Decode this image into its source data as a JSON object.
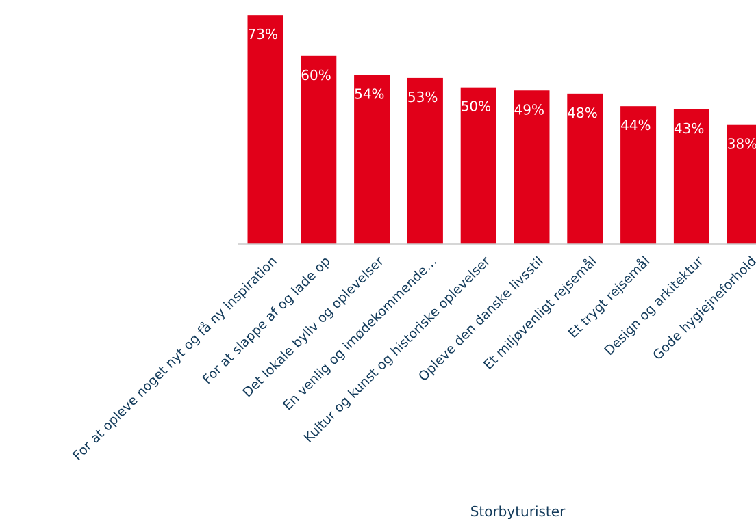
{
  "chart_data": {
    "type": "bar",
    "categories": [
      "For at opleve noget nyt og få ny inspiration",
      "For at slappe af og lade op",
      "Det lokale byliv og oplevelser",
      "En venlig og imødekommende…",
      "Kultur og kunst og historiske oplevelser",
      "Opleve den danske livsstil",
      "Et miljøvenligt rejsemål",
      "Et trygt rejsemål",
      "Design og arkitektur",
      "Gode hygiejneforhold"
    ],
    "series": [
      {
        "name": "Storbyturister",
        "values": [
          73,
          60,
          54,
          53,
          50,
          49,
          48,
          44,
          43,
          38
        ],
        "labels": [
          "73%",
          "60%",
          "54%",
          "53%",
          "50%",
          "49%",
          "48%",
          "44%",
          "43%",
          "38%"
        ]
      }
    ],
    "ylim": [
      0,
      75
    ],
    "grid": false,
    "legend": "bottom",
    "colors": {
      "bar": "#e10019",
      "label_text": "#ffffff",
      "category_text": "#123a5a",
      "axis": "#c9c9c9"
    }
  }
}
